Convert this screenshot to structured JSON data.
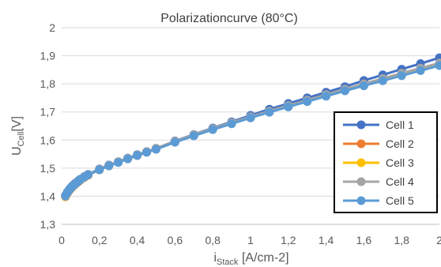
{
  "chart_data": {
    "type": "line",
    "title": "Polarizationcurve (80°C)",
    "xlabel": {
      "main": "i",
      "sub": "Stack",
      "unit": " [A/cm-2]"
    },
    "ylabel": {
      "main": "U",
      "sub": "Cell",
      "unit": "[V]"
    },
    "xlim": [
      0,
      2
    ],
    "ylim": [
      1.3,
      2
    ],
    "x_ticks": [
      "0",
      "0,2",
      "0,4",
      "0,6",
      "0,8",
      "1",
      "1,2",
      "1,4",
      "1,6",
      "1,8",
      "2"
    ],
    "y_ticks": [
      "1,3",
      "1,4",
      "1,5",
      "1,6",
      "1,7",
      "1,8",
      "1,9",
      "2"
    ],
    "grid": "horizontal",
    "legend_position": "right",
    "x": [
      0.02,
      0.03,
      0.04,
      0.05,
      0.06,
      0.07,
      0.08,
      0.09,
      0.1,
      0.12,
      0.14,
      0.2,
      0.25,
      0.3,
      0.35,
      0.4,
      0.45,
      0.5,
      0.6,
      0.7,
      0.8,
      0.9,
      1.0,
      1.1,
      1.2,
      1.3,
      1.4,
      1.5,
      1.6,
      1.7,
      1.8,
      1.9,
      2.0
    ],
    "series": [
      {
        "name": "Cell 1",
        "color": "#4472C4",
        "values": [
          1.403,
          1.415,
          1.424,
          1.432,
          1.439,
          1.445,
          1.45,
          1.456,
          1.461,
          1.47,
          1.478,
          1.497,
          1.511,
          1.523,
          1.536,
          1.548,
          1.559,
          1.57,
          1.597,
          1.62,
          1.643,
          1.665,
          1.688,
          1.71,
          1.73,
          1.75,
          1.77,
          1.79,
          1.812,
          1.832,
          1.852,
          1.872,
          1.893
        ]
      },
      {
        "name": "Cell 2",
        "color": "#ED7D31",
        "values": [
          1.398,
          1.41,
          1.42,
          1.428,
          1.435,
          1.441,
          1.447,
          1.452,
          1.458,
          1.467,
          1.475,
          1.494,
          1.508,
          1.521,
          1.533,
          1.545,
          1.557,
          1.568,
          1.593,
          1.616,
          1.638,
          1.659,
          1.68,
          1.7,
          1.719,
          1.738,
          1.757,
          1.776,
          1.794,
          1.812,
          1.83,
          1.848,
          1.866
        ]
      },
      {
        "name": "Cell 3",
        "color": "#FFC000",
        "values": [
          1.399,
          1.411,
          1.421,
          1.429,
          1.436,
          1.442,
          1.448,
          1.453,
          1.459,
          1.468,
          1.476,
          1.495,
          1.509,
          1.522,
          1.534,
          1.546,
          1.558,
          1.569,
          1.594,
          1.617,
          1.639,
          1.66,
          1.681,
          1.701,
          1.721,
          1.74,
          1.759,
          1.778,
          1.797,
          1.815,
          1.833,
          1.851,
          1.869
        ]
      },
      {
        "name": "Cell 4",
        "color": "#A5A5A5",
        "values": [
          1.4,
          1.412,
          1.422,
          1.43,
          1.437,
          1.443,
          1.449,
          1.454,
          1.46,
          1.469,
          1.477,
          1.496,
          1.51,
          1.523,
          1.535,
          1.547,
          1.559,
          1.571,
          1.596,
          1.619,
          1.641,
          1.662,
          1.683,
          1.703,
          1.723,
          1.742,
          1.762,
          1.781,
          1.8,
          1.819,
          1.838,
          1.856,
          1.874
        ]
      },
      {
        "name": "Cell 5",
        "color": "#5B9BD5",
        "values": [
          1.401,
          1.413,
          1.422,
          1.43,
          1.437,
          1.443,
          1.448,
          1.454,
          1.459,
          1.468,
          1.476,
          1.494,
          1.508,
          1.52,
          1.533,
          1.545,
          1.556,
          1.567,
          1.592,
          1.615,
          1.637,
          1.658,
          1.679,
          1.699,
          1.718,
          1.737,
          1.756,
          1.775,
          1.793,
          1.811,
          1.829,
          1.847,
          1.865
        ]
      }
    ]
  }
}
